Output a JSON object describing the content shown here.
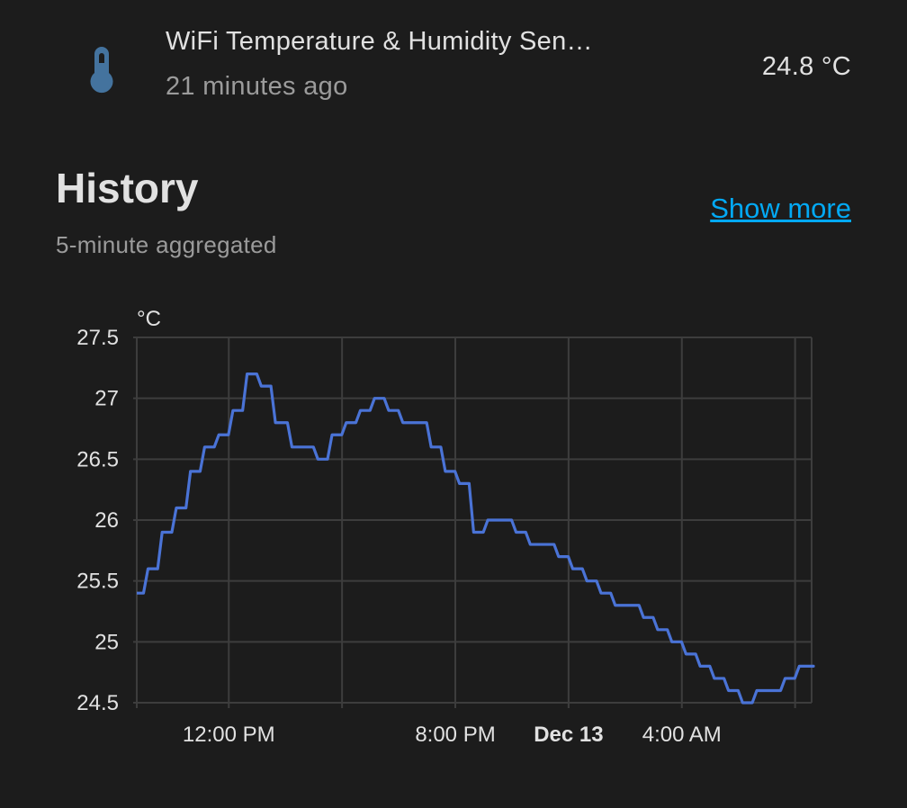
{
  "entity": {
    "icon": "thermometer-icon",
    "icon_color": "#44739e",
    "name": "WiFi Temperature & Humidity Sen…",
    "last_changed": "21 minutes ago",
    "state": "24.8 °C"
  },
  "history": {
    "title": "History",
    "show_more_label": "Show more",
    "aggregation_label": "5-minute aggregated"
  },
  "chart_data": {
    "type": "line",
    "step": true,
    "unit_label": "°C",
    "line_color": "#4a73d6",
    "grid": true,
    "ylim": [
      24.5,
      27.5
    ],
    "yticks": [
      "27.5",
      "27",
      "26.5",
      "26",
      "25.5",
      "25",
      "24.5"
    ],
    "xlim": [
      "Dec 12 08:45",
      "Dec 13 08:35"
    ],
    "xticks": [
      {
        "time": "Dec 12 12:00",
        "label": "12:00 PM",
        "bold": false
      },
      {
        "time": "Dec 12 16:00",
        "label": "",
        "bold": false
      },
      {
        "time": "Dec 12 20:00",
        "label": "8:00 PM",
        "bold": false
      },
      {
        "time": "Dec 13 00:00",
        "label": "Dec 13",
        "bold": true
      },
      {
        "time": "Dec 13 04:00",
        "label": "4:00 AM",
        "bold": false
      },
      {
        "time": "Dec 13 08:00",
        "label": "",
        "bold": false
      }
    ],
    "series": [
      {
        "points": [
          [
            "Dec 12 08:45",
            25.4
          ],
          [
            "Dec 12 09:05",
            25.6
          ],
          [
            "Dec 12 09:35",
            25.9
          ],
          [
            "Dec 12 10:05",
            26.1
          ],
          [
            "Dec 12 10:35",
            26.4
          ],
          [
            "Dec 12 11:05",
            26.6
          ],
          [
            "Dec 12 11:35",
            26.7
          ],
          [
            "Dec 12 12:05",
            26.9
          ],
          [
            "Dec 12 12:35",
            27.2
          ],
          [
            "Dec 12 13:05",
            27.1
          ],
          [
            "Dec 12 13:35",
            26.8
          ],
          [
            "Dec 12 14:10",
            26.6
          ],
          [
            "Dec 12 15:05",
            26.5
          ],
          [
            "Dec 12 15:35",
            26.7
          ],
          [
            "Dec 12 16:05",
            26.8
          ],
          [
            "Dec 12 16:35",
            26.9
          ],
          [
            "Dec 12 17:05",
            27.0
          ],
          [
            "Dec 12 17:35",
            26.9
          ],
          [
            "Dec 12 18:05",
            26.8
          ],
          [
            "Dec 12 19:05",
            26.6
          ],
          [
            "Dec 12 19:35",
            26.4
          ],
          [
            "Dec 12 20:05",
            26.3
          ],
          [
            "Dec 12 20:35",
            25.9
          ],
          [
            "Dec 12 21:05",
            26.0
          ],
          [
            "Dec 12 22:05",
            25.9
          ],
          [
            "Dec 12 22:35",
            25.8
          ],
          [
            "Dec 12 23:35",
            25.7
          ],
          [
            "Dec 13 00:05",
            25.6
          ],
          [
            "Dec 13 00:35",
            25.5
          ],
          [
            "Dec 13 01:05",
            25.4
          ],
          [
            "Dec 13 01:35",
            25.3
          ],
          [
            "Dec 13 02:35",
            25.2
          ],
          [
            "Dec 13 03:05",
            25.1
          ],
          [
            "Dec 13 03:35",
            25.0
          ],
          [
            "Dec 13 04:05",
            24.9
          ],
          [
            "Dec 13 04:35",
            24.8
          ],
          [
            "Dec 13 05:05",
            24.7
          ],
          [
            "Dec 13 05:35",
            24.6
          ],
          [
            "Dec 13 06:05",
            24.5
          ],
          [
            "Dec 13 06:35",
            24.6
          ],
          [
            "Dec 13 07:35",
            24.7
          ],
          [
            "Dec 13 08:05",
            24.8
          ],
          [
            "Dec 13 08:35",
            24.8
          ]
        ]
      }
    ]
  }
}
